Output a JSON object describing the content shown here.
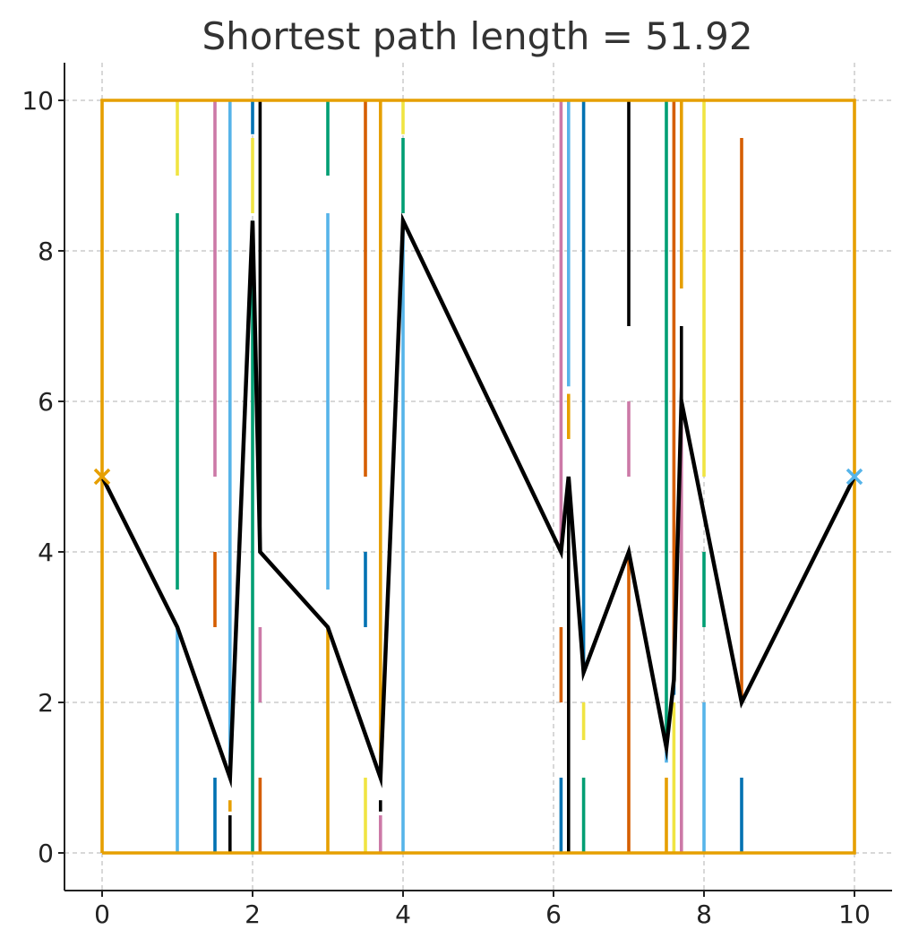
{
  "chart_data": {
    "type": "line",
    "title": "Shortest path length = 51.92",
    "xlabel": "",
    "ylabel": "",
    "xlim": [
      -0.5,
      10.5
    ],
    "ylim": [
      -0.5,
      10.5
    ],
    "xticks": [
      0,
      2,
      4,
      6,
      8,
      10
    ],
    "yticks": [
      0,
      2,
      4,
      6,
      8,
      10
    ],
    "grid": true,
    "colors": {
      "boundary": "#e69f00",
      "path": "#000000",
      "start_marker": "#e69f00",
      "end_marker": "#56b4e9"
    },
    "boundary": [
      [
        0,
        0
      ],
      [
        10,
        0
      ],
      [
        10,
        10
      ],
      [
        0,
        10
      ],
      [
        0,
        0
      ]
    ],
    "start": [
      0,
      5
    ],
    "end": [
      10,
      5
    ],
    "path": [
      [
        0,
        5
      ],
      [
        1,
        3
      ],
      [
        1.7,
        1
      ],
      [
        2,
        8.4
      ],
      [
        2.1,
        4
      ],
      [
        3,
        3
      ],
      [
        3.7,
        1
      ],
      [
        4,
        8.4
      ],
      [
        6.1,
        4
      ],
      [
        6.2,
        5
      ],
      [
        6.4,
        2.4
      ],
      [
        7,
        4
      ],
      [
        7.5,
        1.4
      ],
      [
        7.6,
        2.3
      ],
      [
        7.7,
        6
      ],
      [
        8.5,
        2
      ],
      [
        10,
        5
      ]
    ],
    "walls": [
      {
        "x": 1.0,
        "color": "#f0e442",
        "y": [
          9.0,
          10.0
        ]
      },
      {
        "x": 1.0,
        "color": "#009e73",
        "y": [
          3.5,
          8.5
        ]
      },
      {
        "x": 1.0,
        "color": "#56b4e9",
        "y": [
          0.0,
          3.0
        ]
      },
      {
        "x": 1.5,
        "color": "#cc79a7",
        "y": [
          5.0,
          10.0
        ]
      },
      {
        "x": 1.5,
        "color": "#d55e00",
        "y": [
          3.0,
          4.0
        ]
      },
      {
        "x": 1.5,
        "color": "#0072b2",
        "y": [
          0.0,
          1.0
        ]
      },
      {
        "x": 1.7,
        "color": "#56b4e9",
        "y": [
          1.0,
          10.0
        ]
      },
      {
        "x": 1.7,
        "color": "#e69f00",
        "y": [
          0.55,
          0.7
        ]
      },
      {
        "x": 1.7,
        "color": "#000000",
        "y": [
          0.0,
          0.5
        ]
      },
      {
        "x": 2.0,
        "color": "#0072b2",
        "y": [
          9.55,
          10.0
        ]
      },
      {
        "x": 2.0,
        "color": "#f0e442",
        "y": [
          8.5,
          9.5
        ]
      },
      {
        "x": 2.0,
        "color": "#009e73",
        "y": [
          0.0,
          8.4
        ]
      },
      {
        "x": 2.1,
        "color": "#000000",
        "y": [
          4.0,
          10.0
        ]
      },
      {
        "x": 2.1,
        "color": "#cc79a7",
        "y": [
          2.0,
          3.0
        ]
      },
      {
        "x": 2.1,
        "color": "#d55e00",
        "y": [
          0.0,
          1.0
        ]
      },
      {
        "x": 3.0,
        "color": "#009e73",
        "y": [
          9.0,
          10.0
        ]
      },
      {
        "x": 3.0,
        "color": "#56b4e9",
        "y": [
          3.5,
          8.5
        ]
      },
      {
        "x": 3.0,
        "color": "#e69f00",
        "y": [
          0.0,
          3.0
        ]
      },
      {
        "x": 3.5,
        "color": "#d55e00",
        "y": [
          5.0,
          10.0
        ]
      },
      {
        "x": 3.5,
        "color": "#0072b2",
        "y": [
          3.0,
          4.0
        ]
      },
      {
        "x": 3.5,
        "color": "#f0e442",
        "y": [
          0.0,
          1.0
        ]
      },
      {
        "x": 3.7,
        "color": "#e69f00",
        "y": [
          1.0,
          10.0
        ]
      },
      {
        "x": 3.7,
        "color": "#000000",
        "y": [
          0.55,
          0.7
        ]
      },
      {
        "x": 3.7,
        "color": "#cc79a7",
        "y": [
          0.0,
          0.5
        ]
      },
      {
        "x": 4.0,
        "color": "#f0e442",
        "y": [
          9.55,
          10.0
        ]
      },
      {
        "x": 4.0,
        "color": "#009e73",
        "y": [
          8.5,
          9.5
        ]
      },
      {
        "x": 4.0,
        "color": "#56b4e9",
        "y": [
          0.0,
          8.4
        ]
      },
      {
        "x": 6.1,
        "color": "#cc79a7",
        "y": [
          4.0,
          10.0
        ]
      },
      {
        "x": 6.1,
        "color": "#d55e00",
        "y": [
          2.0,
          3.0
        ]
      },
      {
        "x": 6.1,
        "color": "#0072b2",
        "y": [
          0.0,
          1.0
        ]
      },
      {
        "x": 6.2,
        "color": "#56b4e9",
        "y": [
          6.2,
          10.0
        ]
      },
      {
        "x": 6.2,
        "color": "#e69f00",
        "y": [
          5.5,
          6.1
        ]
      },
      {
        "x": 6.2,
        "color": "#000000",
        "y": [
          0.0,
          5.0
        ]
      },
      {
        "x": 6.4,
        "color": "#0072b2",
        "y": [
          2.4,
          10.0
        ]
      },
      {
        "x": 6.4,
        "color": "#f0e442",
        "y": [
          1.5,
          2.0
        ]
      },
      {
        "x": 6.4,
        "color": "#009e73",
        "y": [
          0.0,
          1.0
        ]
      },
      {
        "x": 7.0,
        "color": "#000000",
        "y": [
          7.0,
          10.0
        ]
      },
      {
        "x": 7.0,
        "color": "#cc79a7",
        "y": [
          5.0,
          6.0
        ]
      },
      {
        "x": 7.0,
        "color": "#d55e00",
        "y": [
          0.0,
          4.0
        ]
      },
      {
        "x": 7.5,
        "color": "#009e73",
        "y": [
          1.4,
          10.0
        ]
      },
      {
        "x": 7.5,
        "color": "#56b4e9",
        "y": [
          1.2,
          1.35
        ]
      },
      {
        "x": 7.5,
        "color": "#e69f00",
        "y": [
          0.0,
          1.0
        ]
      },
      {
        "x": 7.6,
        "color": "#d55e00",
        "y": [
          2.3,
          10.0
        ]
      },
      {
        "x": 7.6,
        "color": "#0072b2",
        "y": [
          2.1,
          2.25
        ]
      },
      {
        "x": 7.6,
        "color": "#f0e442",
        "y": [
          0.0,
          2.0
        ]
      },
      {
        "x": 7.7,
        "color": "#e69f00",
        "y": [
          7.5,
          10.0
        ]
      },
      {
        "x": 7.7,
        "color": "#000000",
        "y": [
          6.0,
          7.0
        ]
      },
      {
        "x": 7.7,
        "color": "#cc79a7",
        "y": [
          0.0,
          6.0
        ]
      },
      {
        "x": 8.0,
        "color": "#f0e442",
        "y": [
          5.0,
          10.0
        ]
      },
      {
        "x": 8.0,
        "color": "#009e73",
        "y": [
          3.0,
          4.0
        ]
      },
      {
        "x": 8.0,
        "color": "#56b4e9",
        "y": [
          0.0,
          2.0
        ]
      },
      {
        "x": 8.5,
        "color": "#d55e00",
        "y": [
          2.0,
          9.5
        ]
      },
      {
        "x": 8.5,
        "color": "#0072b2",
        "y": [
          0.0,
          1.0
        ]
      }
    ]
  }
}
